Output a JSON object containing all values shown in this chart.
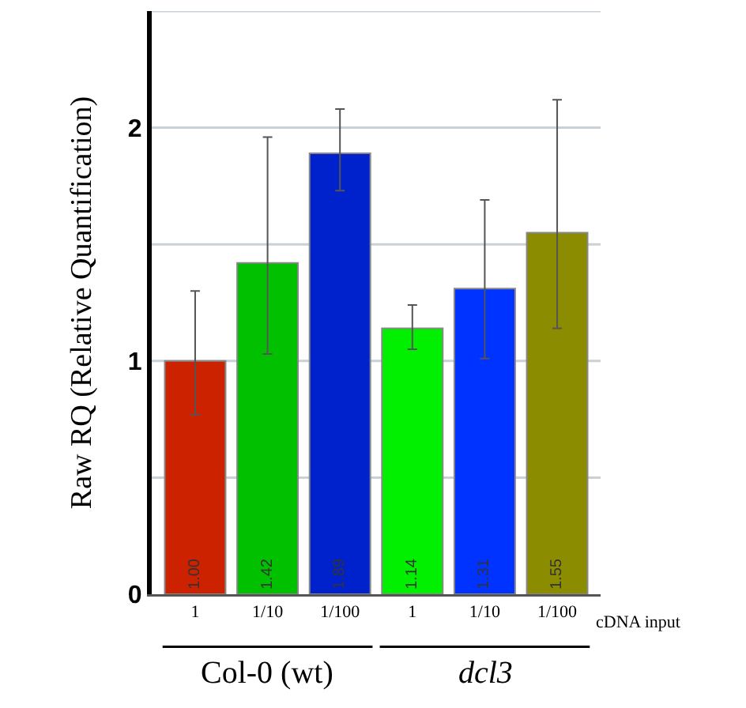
{
  "chart_data": {
    "type": "bar",
    "ylabel": "Raw RQ (Relative Quantification)",
    "categories": [
      "1",
      "1/10",
      "1/100",
      "1",
      "1/10",
      "1/100"
    ],
    "values": [
      1.0,
      1.42,
      1.89,
      1.14,
      1.31,
      1.55
    ],
    "value_labels": [
      "1.00",
      "1.42",
      "1.89",
      "1.14",
      "1.31",
      "1.55"
    ],
    "colors": [
      "#cc2200",
      "#00c000",
      "#0022cc",
      "#00f000",
      "#0033ff",
      "#8c8c00"
    ],
    "errors": [
      [
        0.77,
        1.3
      ],
      [
        1.03,
        1.96
      ],
      [
        1.73,
        2.08
      ],
      [
        1.05,
        1.24
      ],
      [
        1.01,
        1.69
      ],
      [
        1.14,
        2.12
      ]
    ],
    "ylim": [
      0,
      2.5
    ],
    "yticks": [
      0,
      {
        "value": 0.5,
        "label": null
      },
      1,
      {
        "value": 1.5,
        "label": null
      },
      2,
      {
        "value": 2.5,
        "label": null
      }
    ],
    "grid": "y",
    "annotations": [
      "cDNA input",
      "Col-0 (wt)",
      "dcl3"
    ]
  }
}
